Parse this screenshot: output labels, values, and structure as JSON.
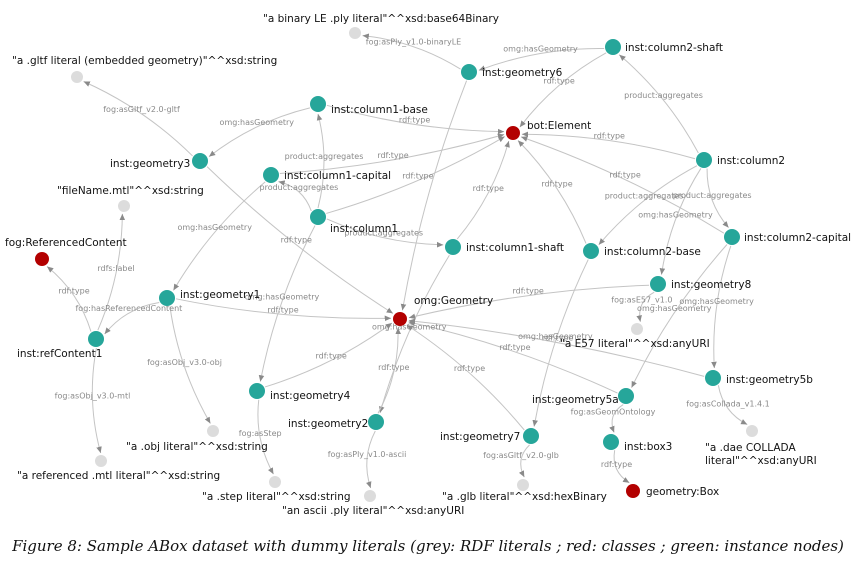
{
  "colors": {
    "literal": "#dcdcdc",
    "class": "#b30000",
    "instance": "#26a69a",
    "edge": "#c4c4c4",
    "edge_label": "#8a8a8a"
  },
  "nodes": [
    {
      "id": "bot_element",
      "label": "bot:Element",
      "kind": "class"
    },
    {
      "id": "omg_geometry",
      "label": "omg:Geometry",
      "kind": "class"
    },
    {
      "id": "fog_refcontent",
      "label": "fog:ReferencedContent",
      "kind": "class"
    },
    {
      "id": "geometry_box",
      "label": "geometry:Box",
      "kind": "class"
    },
    {
      "id": "col2_shaft",
      "label": "inst:column2-shaft",
      "kind": "instance"
    },
    {
      "id": "geometry6",
      "label": "inst:geometry6",
      "kind": "instance"
    },
    {
      "id": "col1_base",
      "label": "inst:column1-base",
      "kind": "instance"
    },
    {
      "id": "geometry3",
      "label": "inst:geometry3",
      "kind": "instance"
    },
    {
      "id": "col1_capital",
      "label": "inst:column1-capital",
      "kind": "instance"
    },
    {
      "id": "column1",
      "label": "inst:column1",
      "kind": "instance"
    },
    {
      "id": "col1_shaft",
      "label": "inst:column1-shaft",
      "kind": "instance"
    },
    {
      "id": "column2",
      "label": "inst:column2",
      "kind": "instance"
    },
    {
      "id": "col2_base",
      "label": "inst:column2-base",
      "kind": "instance"
    },
    {
      "id": "col2_capital",
      "label": "inst:column2-capital",
      "kind": "instance"
    },
    {
      "id": "geometry8",
      "label": "inst:geometry8",
      "kind": "instance"
    },
    {
      "id": "geometry1",
      "label": "inst:geometry1",
      "kind": "instance"
    },
    {
      "id": "refcontent1",
      "label": "inst:refContent1",
      "kind": "instance"
    },
    {
      "id": "geometry4",
      "label": "inst:geometry4",
      "kind": "instance"
    },
    {
      "id": "geometry2",
      "label": "inst:geometry2",
      "kind": "instance"
    },
    {
      "id": "geometry7",
      "label": "inst:geometry7",
      "kind": "instance"
    },
    {
      "id": "geometry5a",
      "label": "inst:geometry5a",
      "kind": "instance"
    },
    {
      "id": "geometry5b",
      "label": "inst:geometry5b",
      "kind": "instance"
    },
    {
      "id": "box3",
      "label": "inst:box3",
      "kind": "instance"
    },
    {
      "id": "lit_binply",
      "label": "\"a binary LE .ply literal\"^^xsd:base64Binary",
      "kind": "literal"
    },
    {
      "id": "lit_gltf",
      "label": "\"a .gltf literal (embedded geometry)\"^^xsd:string",
      "kind": "literal"
    },
    {
      "id": "lit_filename",
      "label": "\"fileName.mtl\"^^xsd:string",
      "kind": "literal"
    },
    {
      "id": "lit_e57",
      "label": "\"a E57 literal\"^^xsd:anyURI",
      "kind": "literal"
    },
    {
      "id": "lit_obj",
      "label": "\"a .obj literal\"^^xsd:string",
      "kind": "literal"
    },
    {
      "id": "lit_mtl",
      "label": "\"a referenced .mtl literal\"^^xsd:string",
      "kind": "literal"
    },
    {
      "id": "lit_step",
      "label": "\"a .step literal\"^^xsd:string",
      "kind": "literal"
    },
    {
      "id": "lit_asciiply",
      "label": "\"an ascii .ply literal\"^^xsd:anyURI",
      "kind": "literal"
    },
    {
      "id": "lit_glb",
      "label": "\"a .glb literal\"^^xsd:hexBinary",
      "kind": "literal"
    },
    {
      "id": "lit_dae",
      "label": "\"a .dae COLLADA literal\"^^xsd:anyURI",
      "kind": "literal"
    }
  ],
  "edges": [
    {
      "from": "geometry6",
      "to": "lit_binply",
      "label": "fog:asPly_v1.0-binaryLE"
    },
    {
      "from": "col2_shaft",
      "to": "geometry6",
      "label": "omg:hasGeometry"
    },
    {
      "from": "col2_shaft",
      "to": "bot_element",
      "label": "rdf:type"
    },
    {
      "from": "geometry6",
      "to": "omg_geometry",
      "label": ""
    },
    {
      "from": "geometry3",
      "to": "lit_gltf",
      "label": "fog:asGltf_v2.0-gltf"
    },
    {
      "from": "col1_base",
      "to": "geometry3",
      "label": "omg:hasGeometry"
    },
    {
      "from": "col1_base",
      "to": "bot_element",
      "label": "rdf:type"
    },
    {
      "from": "column1",
      "to": "col1_base",
      "label": "product:aggregates"
    },
    {
      "from": "column1",
      "to": "col1_capital",
      "label": "product:aggregates"
    },
    {
      "from": "column1",
      "to": "bot_element",
      "label": "rdf:type"
    },
    {
      "from": "column1",
      "to": "col1_shaft",
      "label": "product:aggregates"
    },
    {
      "from": "col1_capital",
      "to": "bot_element",
      "label": "rdf:type"
    },
    {
      "from": "col1_capital",
      "to": "geometry1",
      "label": "omg:hasGeometry"
    },
    {
      "from": "col1_shaft",
      "to": "bot_element",
      "label": "rdf:type"
    },
    {
      "from": "col1_shaft",
      "to": "geometry2",
      "label": "omg:hasGeometry"
    },
    {
      "from": "column1",
      "to": "geometry4",
      "label": "omg:hasGeometry"
    },
    {
      "from": "geometry3",
      "to": "omg_geometry",
      "label": "rdf:type"
    },
    {
      "from": "column2",
      "to": "col2_shaft",
      "label": "product:aggregates"
    },
    {
      "from": "column2",
      "to": "bot_element",
      "label": "rdf:type"
    },
    {
      "from": "column2",
      "to": "col2_capital",
      "label": "product:aggregates"
    },
    {
      "from": "column2",
      "to": "col2_base",
      "label": "product:aggregates"
    },
    {
      "from": "column2",
      "to": "geometry8",
      "label": "omg:hasGeometry"
    },
    {
      "from": "col2_base",
      "to": "bot_element",
      "label": "rdf:type"
    },
    {
      "from": "col2_base",
      "to": "geometry7",
      "label": "omg:hasGeometry"
    },
    {
      "from": "col2_capital",
      "to": "bot_element",
      "label": "rdf:type"
    },
    {
      "from": "col2_capital",
      "to": "geometry5a",
      "label": "omg:hasGeometry"
    },
    {
      "from": "col2_capital",
      "to": "geometry5b",
      "label": "omg:hasGeometry"
    },
    {
      "from": "geometry8",
      "to": "omg_geometry",
      "label": "rdf:type"
    },
    {
      "from": "geometry8",
      "to": "lit_e57",
      "label": "fog:asE57_v1.0"
    },
    {
      "from": "geometry1",
      "to": "omg_geometry",
      "label": "rdf:type"
    },
    {
      "from": "geometry1",
      "to": "refcontent1",
      "label": "fog:hasReferencedContent"
    },
    {
      "from": "geometry1",
      "to": "lit_obj",
      "label": "fog:asObj_v3.0-obj"
    },
    {
      "from": "refcontent1",
      "to": "fog_refcontent",
      "label": "rdf:type"
    },
    {
      "from": "refcontent1",
      "to": "lit_filename",
      "label": "rdfs:label"
    },
    {
      "from": "refcontent1",
      "to": "lit_mtl",
      "label": "fog:asObj_v3.0-mtl"
    },
    {
      "from": "geometry4",
      "to": "omg_geometry",
      "label": "rdf:type"
    },
    {
      "from": "geometry4",
      "to": "lit_step",
      "label": "fog:asStep"
    },
    {
      "from": "geometry2",
      "to": "omg_geometry",
      "label": "rdf:type"
    },
    {
      "from": "geometry2",
      "to": "lit_asciiply",
      "label": "fog:asPly_v1.0-ascii"
    },
    {
      "from": "geometry7",
      "to": "omg_geometry",
      "label": "rdf:type"
    },
    {
      "from": "geometry7",
      "to": "lit_glb",
      "label": "fog:asGltf_v2.0-glb"
    },
    {
      "from": "geometry5a",
      "to": "omg_geometry",
      "label": "rdf:type"
    },
    {
      "from": "geometry5a",
      "to": "box3",
      "label": "fog:asGeomOntology"
    },
    {
      "from": "geometry5b",
      "to": "omg_geometry",
      "label": "rdf:type"
    },
    {
      "from": "geometry5b",
      "to": "lit_dae",
      "label": "fog:asCollada_v1.4.1"
    },
    {
      "from": "box3",
      "to": "geometry_box",
      "label": "rdf:type"
    }
  ],
  "caption": "Figure 8: Sample ABox dataset with dummy literals (grey: RDF literals ; red: classes ; green: instance nodes)"
}
